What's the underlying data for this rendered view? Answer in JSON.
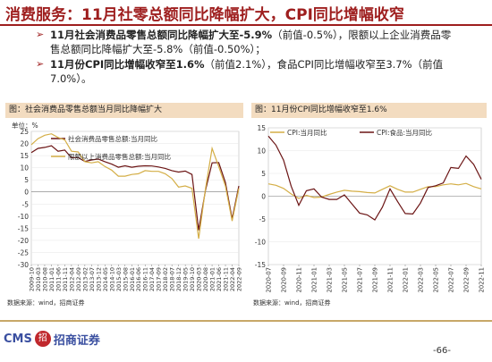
{
  "page": {
    "title": "消费服务：11月社零总额同比降幅扩大，CPI同比增幅收窄",
    "bullets": [
      {
        "bold": "11月社会消费品零售总额同比降幅扩大至-5.9%",
        "rest": "（前值-0.5%），限额以上企业消费品零售总额同比降幅扩大至-5.8%（前值-0.50%）；"
      },
      {
        "bold": "11月份CPI同比增幅收窄至1.6%",
        "rest": "（前值2.1%），食品CPI同比增幅收窄至3.7%（前值7.0%）。"
      }
    ],
    "footer": {
      "logo_text": "CMS",
      "logo_mark": "招",
      "logo_name": "招商证券",
      "page_number": "-66-"
    }
  },
  "colors": {
    "title": "#9e1e1e",
    "series_dark": "#6b1414",
    "series_gold": "#d4ae46",
    "panel_header": "#f3dcc0"
  },
  "chart_data": [
    {
      "type": "line",
      "title": "图：社会消费品零售总额当月同比降幅扩大",
      "ylabel": "单位：%",
      "source": "数据来源：wind，招商证券",
      "ylim": [
        -30,
        25
      ],
      "yticks": [
        25,
        20,
        15,
        10,
        5,
        0,
        -5,
        -10,
        -15,
        -20,
        -25,
        -30
      ],
      "x": [
        "2009-10",
        "2010-03",
        "2010-08",
        "2011-01",
        "2011-06",
        "2011-11",
        "2012-04",
        "2012-09",
        "2013-02",
        "2013-07",
        "2013-12",
        "2014-05",
        "2014-10",
        "2015-03",
        "2015-08",
        "2016-01",
        "2016-06",
        "2016-11",
        "2017-04",
        "2017-09",
        "2018-02",
        "2018-07",
        "2018-12",
        "2019-05",
        "2019-10",
        "2020-03",
        "2020-08",
        "2021-01",
        "2021-06",
        "2021-11",
        "2022-04",
        "2022-09"
      ],
      "xticks": [
        "2009-10",
        "2010-03",
        "2010-08",
        "2011-01",
        "2011-06",
        "2011-11",
        "2012-04",
        "2012-09",
        "2013-02",
        "2013-07",
        "2013-12",
        "2014-05",
        "2014-10",
        "2015-03",
        "2015-08",
        "2016-01",
        "2016-06",
        "2016-11",
        "2017-04",
        "2017-09",
        "2018-02",
        "2018-07",
        "2018-12",
        "2019-05",
        "2019-10",
        "2020-03",
        "2020-08",
        "2021-01",
        "2021-06",
        "2021-11",
        "2022-04",
        "2022-09"
      ],
      "series": [
        {
          "name": "社会消费品零售总额:当月同比",
          "color": "#6b1414",
          "values": [
            16.2,
            18.0,
            18.4,
            19.1,
            16.8,
            17.3,
            14.1,
            14.2,
            12.6,
            13.2,
            13.6,
            12.5,
            11.5,
            10.2,
            10.8,
            10.2,
            10.6,
            10.8,
            10.7,
            10.3,
            9.7,
            8.8,
            8.2,
            8.6,
            7.2,
            -15.8,
            0.5,
            12.0,
            12.1,
            3.9,
            -11.1,
            2.5
          ]
        },
        {
          "name": "限额以上消费品零售总额:当月同比",
          "color": "#d4ae46",
          "values": [
            19.5,
            22.0,
            23.4,
            24.0,
            22.5,
            21.5,
            16.8,
            16.5,
            12.5,
            12.0,
            12.5,
            10.5,
            9.0,
            6.5,
            6.5,
            7.2,
            7.5,
            8.8,
            8.5,
            8.5,
            7.5,
            5.5,
            2.0,
            2.5,
            1.5,
            -19.3,
            1.0,
            18.0,
            10.5,
            2.5,
            -12.0,
            1.5
          ]
        }
      ]
    },
    {
      "type": "line",
      "title": "图：11月份CPI同比增幅收窄至1.6%",
      "source": "数据来源：wind，招商证券",
      "ylim": [
        -15,
        15
      ],
      "yticks": [
        15,
        10,
        5,
        0,
        -5,
        -10,
        -15
      ],
      "x": [
        "2020-07",
        "2020-08",
        "2020-09",
        "2020-10",
        "2020-11",
        "2020-12",
        "2021-01",
        "2021-02",
        "2021-03",
        "2021-04",
        "2021-05",
        "2021-06",
        "2021-07",
        "2021-08",
        "2021-09",
        "2021-10",
        "2021-11",
        "2021-12",
        "2022-01",
        "2022-02",
        "2022-03",
        "2022-04",
        "2022-05",
        "2022-06",
        "2022-07",
        "2022-08",
        "2022-09",
        "2022-10",
        "2022-11"
      ],
      "xticks": [
        "2020-07",
        "2020-09",
        "2020-11",
        "2021-01",
        "2021-03",
        "2021-05",
        "2021-07",
        "2021-09",
        "2021-11",
        "2022-01",
        "2022-03",
        "2022-05",
        "2022-07",
        "2022-09",
        "2022-11"
      ],
      "series": [
        {
          "name": "CPI:当月同比",
          "color": "#d4ae46",
          "values": [
            2.7,
            2.4,
            1.7,
            0.5,
            -0.5,
            0.2,
            -0.3,
            -0.2,
            0.4,
            0.9,
            1.3,
            1.1,
            1.0,
            0.8,
            0.7,
            1.5,
            2.3,
            1.5,
            0.9,
            0.9,
            1.5,
            2.1,
            2.1,
            2.5,
            2.7,
            2.5,
            2.8,
            2.1,
            1.6
          ]
        },
        {
          "name": "CPI:食品:当月同比",
          "color": "#6b1414",
          "values": [
            13.2,
            11.2,
            7.9,
            2.2,
            -2.0,
            1.2,
            1.6,
            -0.2,
            -0.7,
            -0.7,
            0.3,
            -1.7,
            -3.7,
            -4.1,
            -5.2,
            -2.4,
            1.6,
            -1.2,
            -3.8,
            -3.9,
            -1.5,
            1.9,
            2.3,
            2.9,
            6.3,
            6.1,
            8.8,
            7.0,
            3.7
          ]
        }
      ]
    }
  ]
}
